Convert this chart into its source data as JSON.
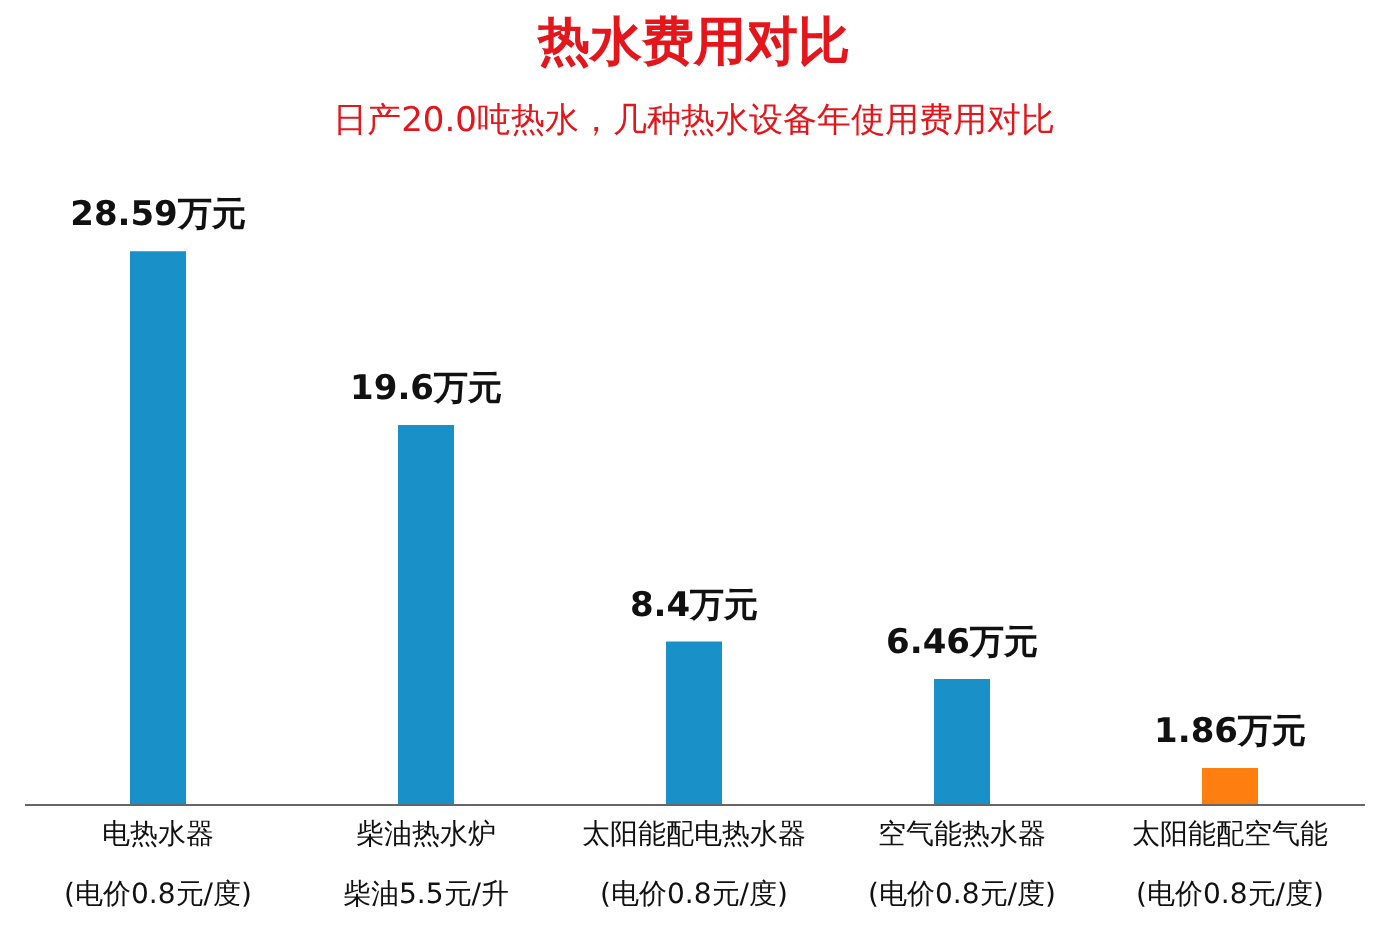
{
  "chart_data": {
    "type": "bar",
    "title": "热水费用对比",
    "subtitle": "日产20.0吨热水，几种热水设备年使用费用对比",
    "categories": [
      "电热水器(电价0.8元/度)",
      "柴油热水炉柴油5.5元/升",
      "太阳能配电热水器(电价0.8元/度)",
      "空气能热水器(电价0.8元/度)",
      "太阳能配空气能(电价0.8元/度)"
    ],
    "values": [
      28.59,
      19.6,
      8.4,
      6.46,
      1.86
    ],
    "value_labels": [
      "28.59万元",
      "19.6万元",
      "8.4万元",
      "6.46万元",
      "1.86万元"
    ],
    "colors": [
      "#1a90c8",
      "#1a90c8",
      "#1a90c8",
      "#1a90c8",
      "#fe7f0f"
    ]
  }
}
